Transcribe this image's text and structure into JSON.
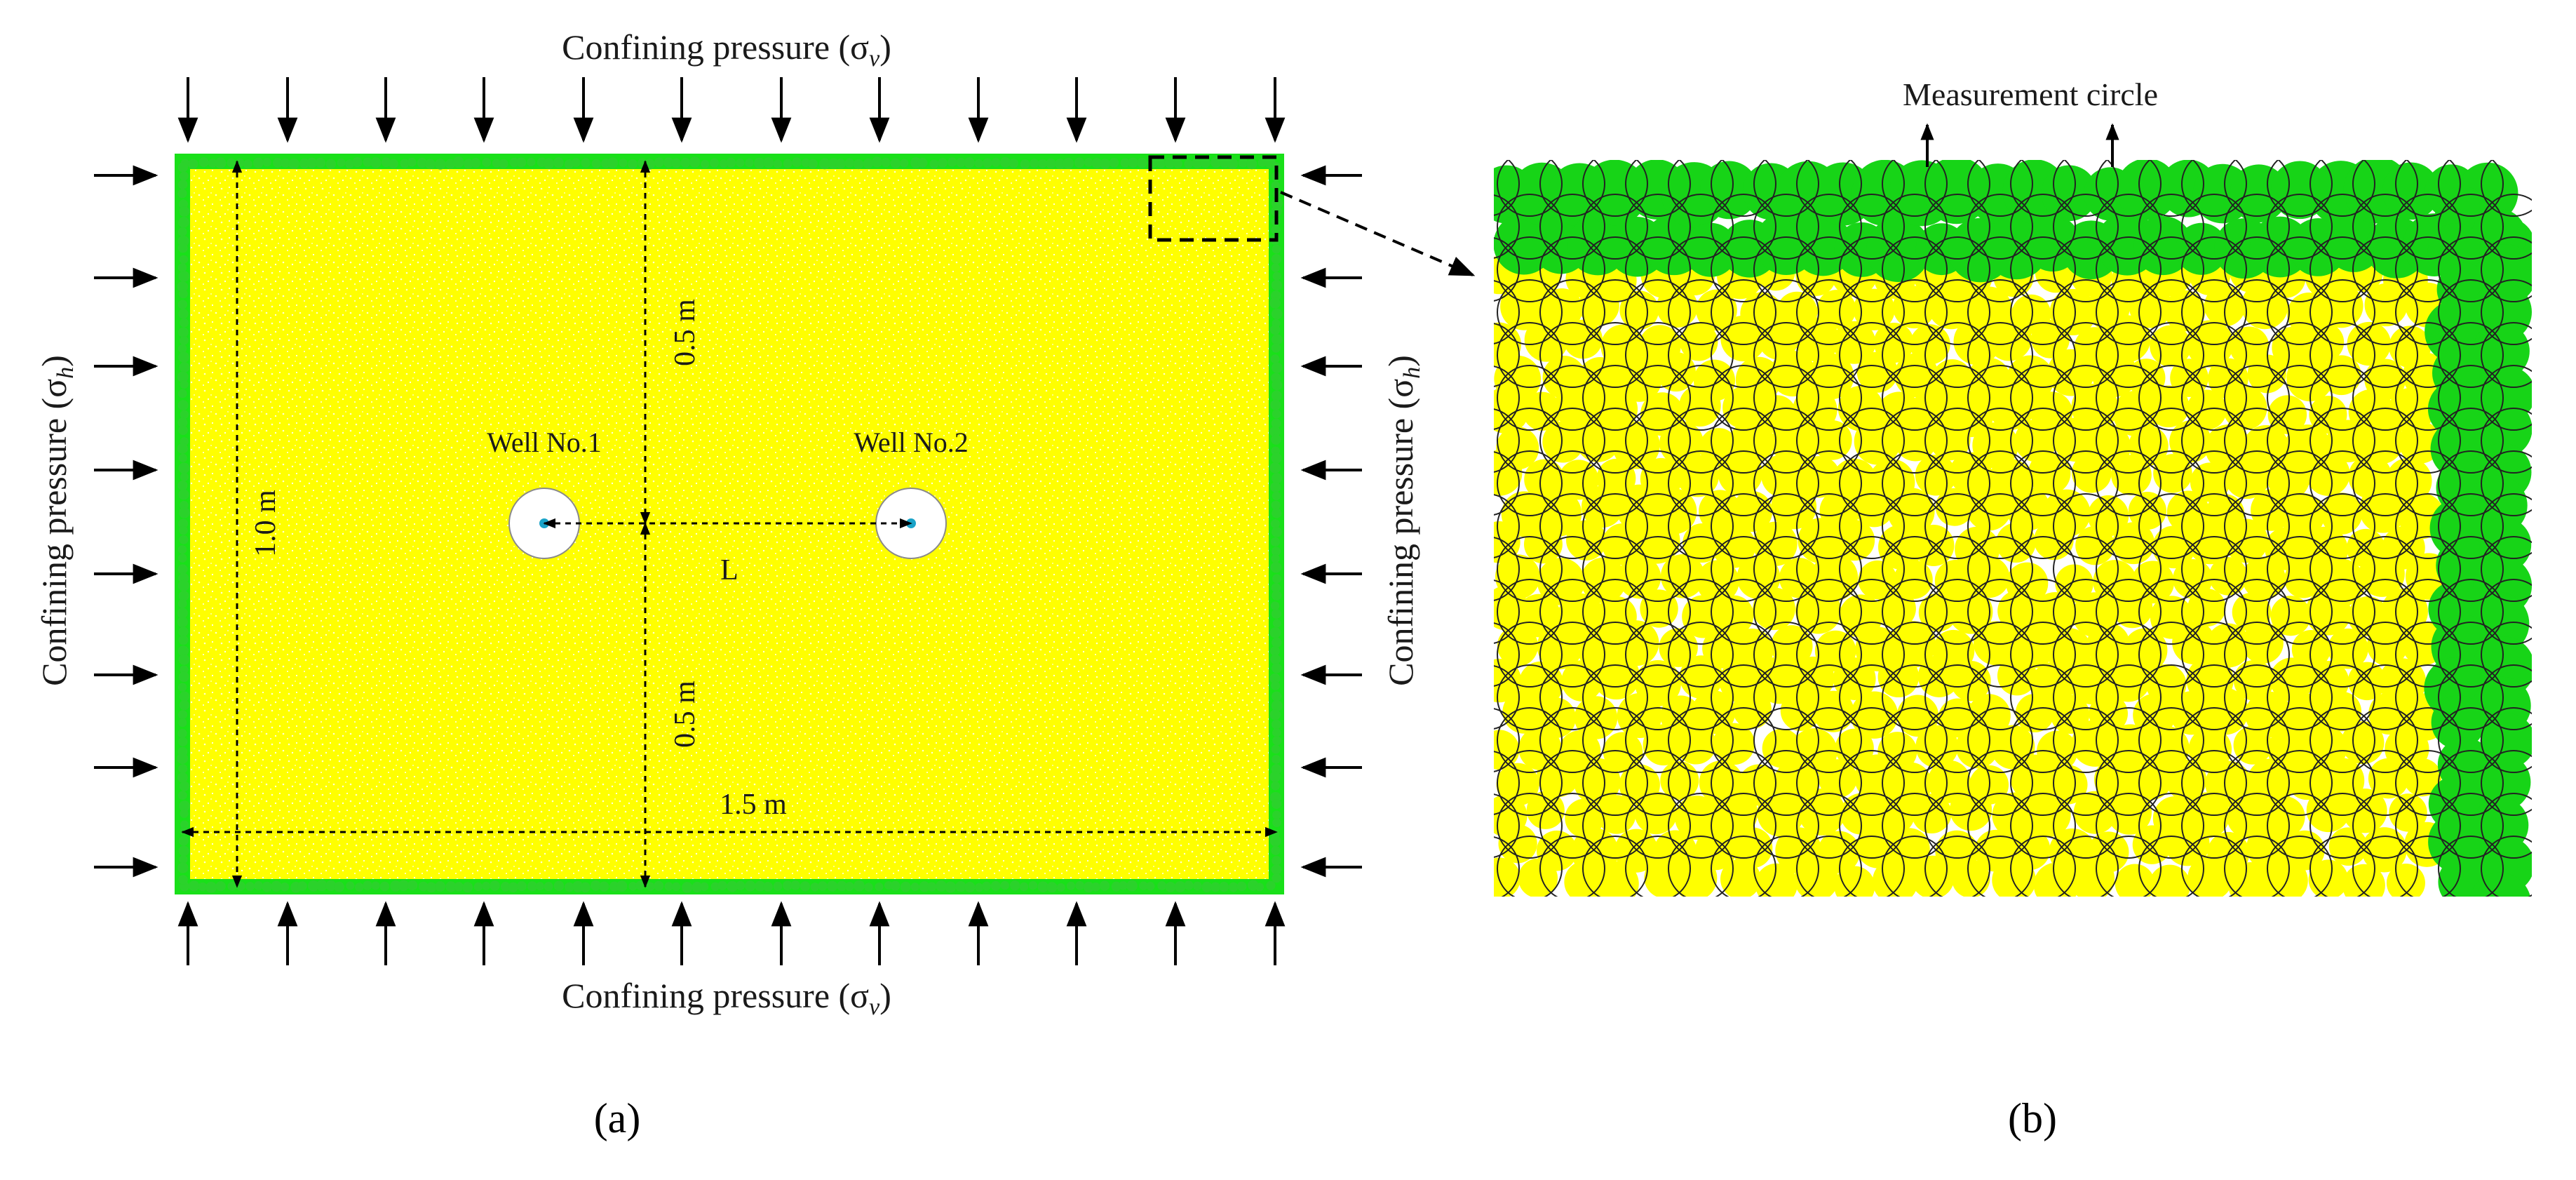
{
  "panel_a": {
    "top_label": "Confining pressure (σ",
    "top_sub": "v",
    "bottom_label": "Confining pressure (σ",
    "bottom_sub": "v",
    "left_label": "Confining pressure (σ",
    "left_sub": "h",
    "right_label": "Confining pressure (σ",
    "right_sub": "h",
    "close_paren": ")",
    "dim_height": "1.0 m",
    "dim_top_half": "0.5 m",
    "dim_bottom_half": "0.5 m",
    "dim_width": "1.5 m",
    "dim_spacing": "L",
    "well1": "Well No.1",
    "well2": "Well No.2",
    "caption": "(a)"
  },
  "panel_b": {
    "measurement_label": "Measurement circle",
    "caption": "(b)"
  },
  "colors": {
    "sample": "#ffff00",
    "boundary_particles": "#19e019",
    "well_center": "#1aa3c8",
    "ink": "#000000"
  }
}
